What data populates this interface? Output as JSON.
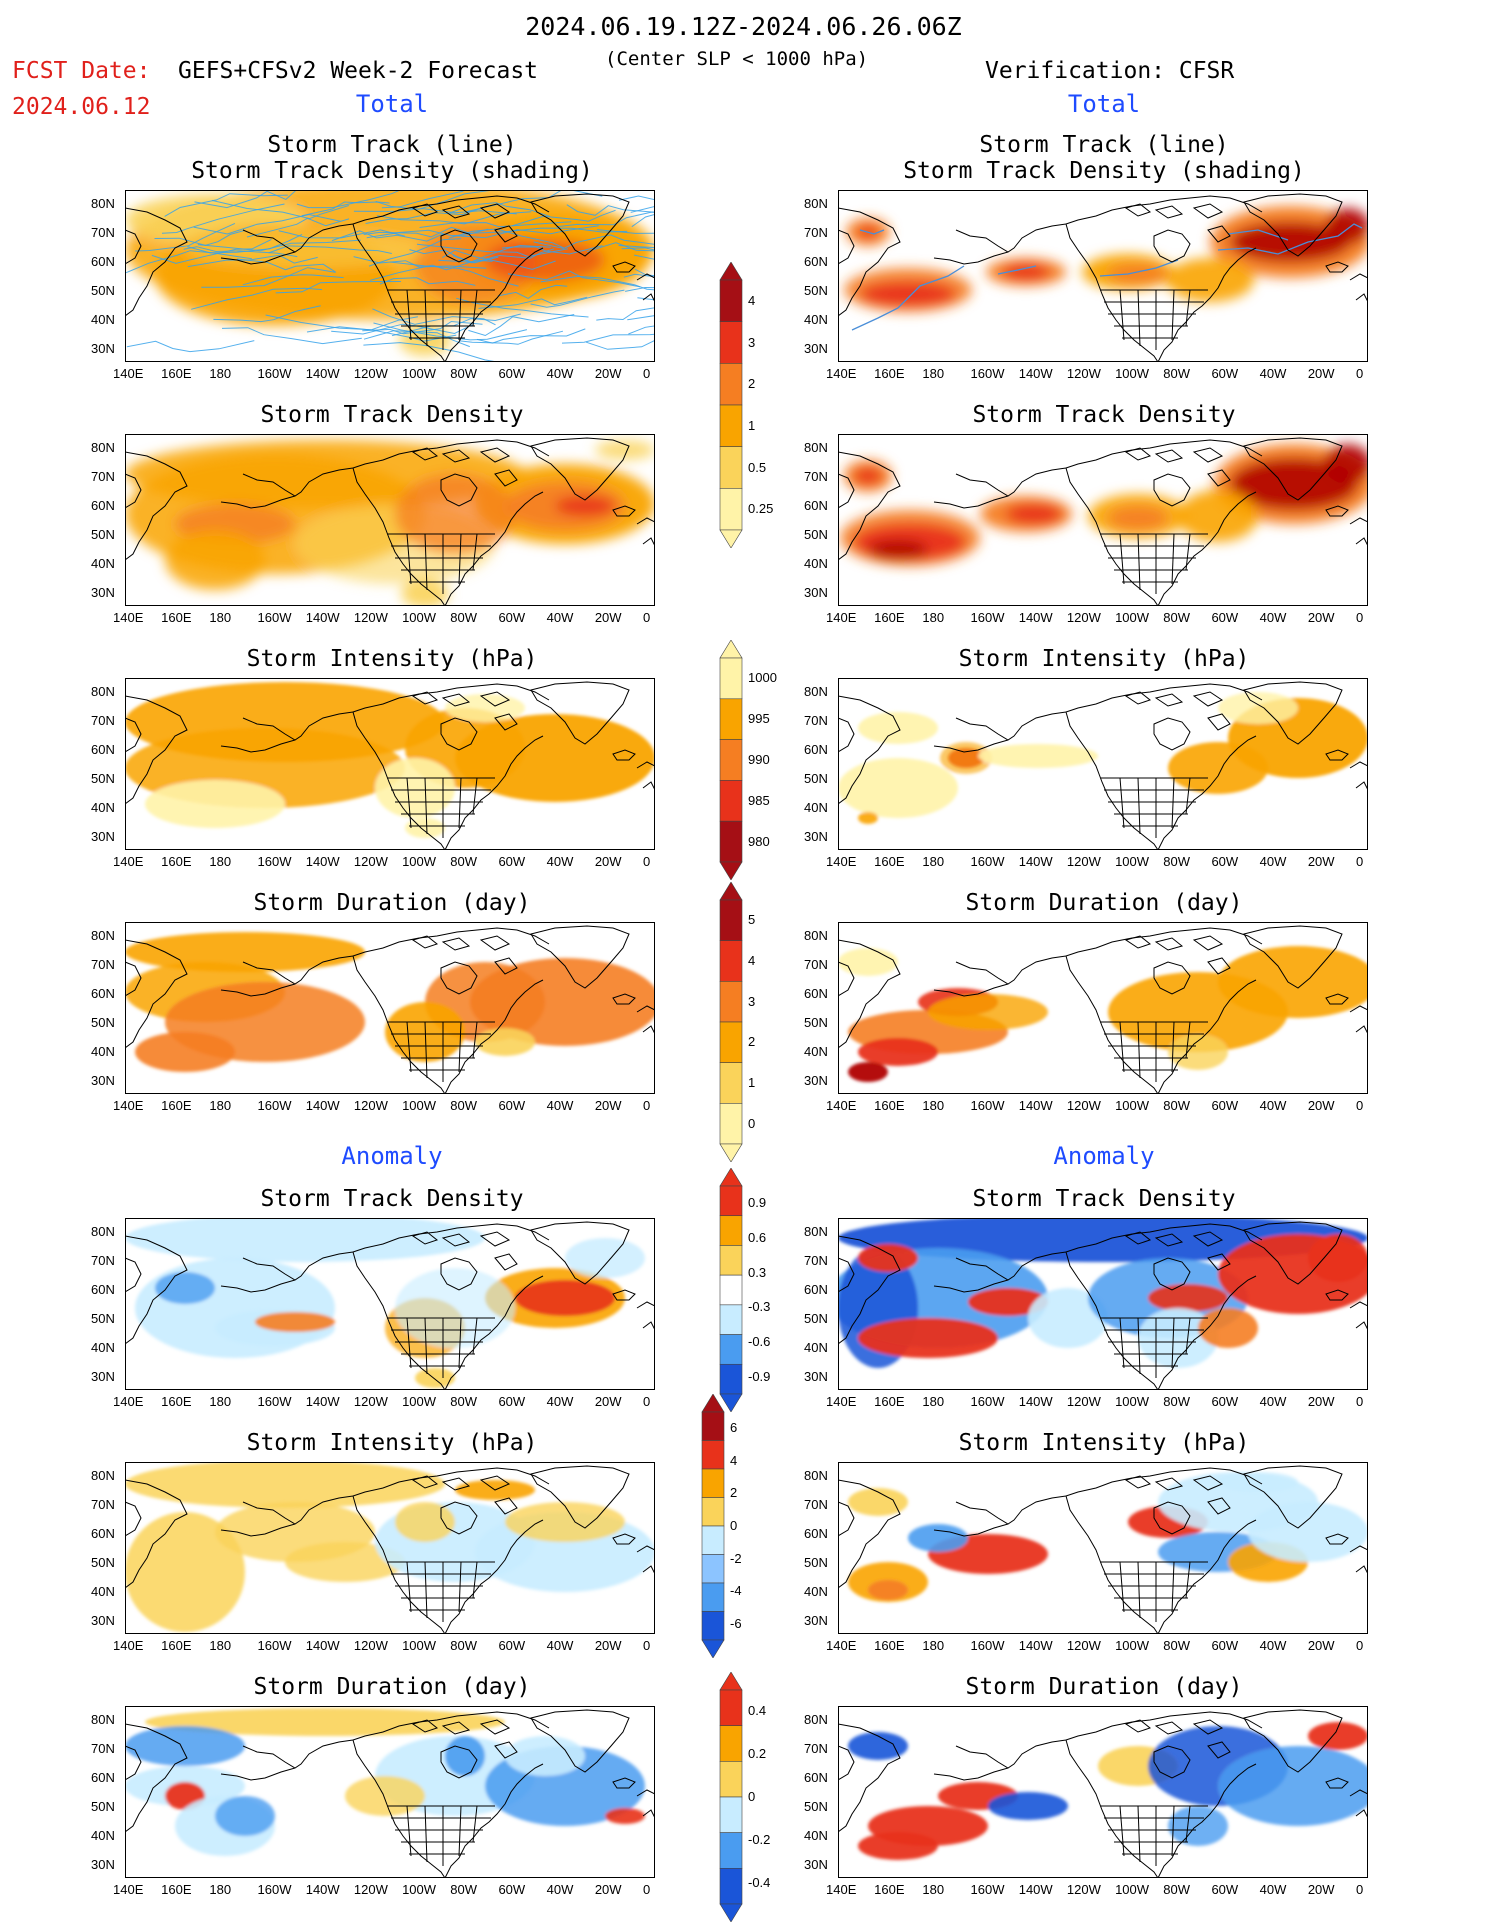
{
  "header": {
    "date_range": "2024.06.19.12Z-2024.06.26.06Z",
    "fcst_label": "FCST Date:",
    "fcst_date": "2024.06.12",
    "forecast_name": "GEFS+CFSv2 Week-2 Forecast",
    "center_slp": "(Center SLP < 1000 hPa)",
    "verification": "Verification: CFSR"
  },
  "sections": {
    "total_left": "Total",
    "total_right": "Total",
    "anomaly_left": "Anomaly",
    "anomaly_right": "Anomaly"
  },
  "panel_titles": {
    "track_line": "Storm Track (line)",
    "track_shading": "Storm Track Density (shading)",
    "density": "Storm Track Density",
    "intensity": "Storm Intensity (hPa)",
    "duration": "Storm Duration (day)"
  },
  "axes": {
    "lat_labels": [
      "80N",
      "70N",
      "60N",
      "50N",
      "40N",
      "30N"
    ],
    "lon_labels": [
      "140E",
      "160E",
      "180",
      "160W",
      "140W",
      "120W",
      "100W",
      "80W",
      "60W",
      "40W",
      "20W",
      "0"
    ]
  },
  "colorbars": {
    "density_total": [
      "4",
      "3",
      "2",
      "1",
      "0.5",
      "0.25"
    ],
    "intensity_total": [
      "1000",
      "995",
      "990",
      "985",
      "980"
    ],
    "duration_total": [
      "5",
      "4",
      "3",
      "2",
      "1",
      "0"
    ],
    "density_anom": [
      "0.9",
      "0.6",
      "0.3",
      "-0.3",
      "-0.6",
      "-0.9"
    ],
    "intensity_anom": [
      "6",
      "4",
      "2",
      "0",
      "-2",
      "-4",
      "-6"
    ],
    "duration_anom": [
      "0.4",
      "0.2",
      "0",
      "-0.2",
      "-0.4"
    ]
  },
  "colors": {
    "pale_yellow": "#fff3a8",
    "yellow": "#fad35a",
    "orange": "#f9a400",
    "dark_orange": "#f57e22",
    "red": "#e8321b",
    "dark_red": "#b00000",
    "light_blue": "#c8ecff",
    "blue": "#4a9cf0",
    "dark_blue": "#1a55d8",
    "track_blue": "#36a2ea"
  }
}
